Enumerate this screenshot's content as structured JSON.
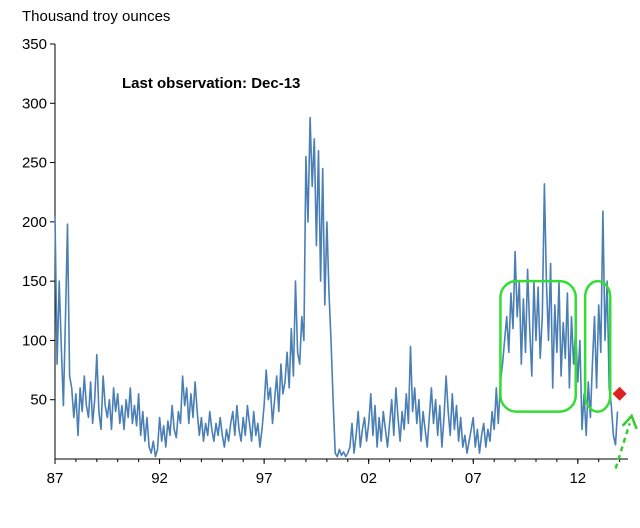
{
  "chart_data": {
    "type": "line",
    "title": "",
    "ylabel": "Thousand troy ounces",
    "xlabel": "",
    "annotation": "Last observation:  Dec-13",
    "ylim": [
      0,
      350
    ],
    "xlim": [
      1987,
      2014.4
    ],
    "yticks": [
      50,
      100,
      150,
      200,
      250,
      300,
      350
    ],
    "xtick_labels": [
      {
        "value": 1987,
        "label": "87"
      },
      {
        "value": 1992,
        "label": "92"
      },
      {
        "value": 1997,
        "label": "97"
      },
      {
        "value": 2002,
        "label": "02"
      },
      {
        "value": 2007,
        "label": "07"
      },
      {
        "value": 2012,
        "label": "12"
      }
    ],
    "grid": false,
    "colors": {
      "line": "#4a7fb5",
      "highlight": "#33dd33",
      "marker": "#dd2222",
      "arrow": "#33cc33"
    },
    "series": [
      {
        "name": "",
        "points": [
          [
            1987.0,
            205
          ],
          [
            1987.1,
            80
          ],
          [
            1987.2,
            150
          ],
          [
            1987.3,
            95
          ],
          [
            1987.4,
            45
          ],
          [
            1987.5,
            120
          ],
          [
            1987.6,
            198
          ],
          [
            1987.7,
            70
          ],
          [
            1987.8,
            60
          ],
          [
            1987.9,
            35
          ],
          [
            1988.0,
            55
          ],
          [
            1988.1,
            20
          ],
          [
            1988.2,
            60
          ],
          [
            1988.3,
            40
          ],
          [
            1988.4,
            70
          ],
          [
            1988.5,
            45
          ],
          [
            1988.6,
            35
          ],
          [
            1988.7,
            65
          ],
          [
            1988.8,
            30
          ],
          [
            1988.9,
            50
          ],
          [
            1989.0,
            88
          ],
          [
            1989.1,
            40
          ],
          [
            1989.2,
            25
          ],
          [
            1989.3,
            70
          ],
          [
            1989.4,
            45
          ],
          [
            1989.5,
            35
          ],
          [
            1989.6,
            50
          ],
          [
            1989.7,
            25
          ],
          [
            1989.8,
            60
          ],
          [
            1989.9,
            40
          ],
          [
            1990.0,
            55
          ],
          [
            1990.1,
            30
          ],
          [
            1990.2,
            45
          ],
          [
            1990.3,
            25
          ],
          [
            1990.4,
            50
          ],
          [
            1990.5,
            35
          ],
          [
            1990.6,
            60
          ],
          [
            1990.7,
            30
          ],
          [
            1990.8,
            45
          ],
          [
            1990.9,
            28
          ],
          [
            1991.0,
            55
          ],
          [
            1991.1,
            20
          ],
          [
            1991.2,
            40
          ],
          [
            1991.3,
            15
          ],
          [
            1991.4,
            35
          ],
          [
            1991.5,
            10
          ],
          [
            1991.6,
            5
          ],
          [
            1991.7,
            15
          ],
          [
            1991.8,
            2
          ],
          [
            1991.9,
            8
          ],
          [
            1992.0,
            35
          ],
          [
            1992.1,
            15
          ],
          [
            1992.2,
            28
          ],
          [
            1992.3,
            10
          ],
          [
            1992.4,
            32
          ],
          [
            1992.5,
            20
          ],
          [
            1992.6,
            45
          ],
          [
            1992.7,
            25
          ],
          [
            1992.8,
            18
          ],
          [
            1992.9,
            40
          ],
          [
            1993.0,
            30
          ],
          [
            1993.1,
            70
          ],
          [
            1993.2,
            45
          ],
          [
            1993.3,
            60
          ],
          [
            1993.4,
            30
          ],
          [
            1993.5,
            55
          ],
          [
            1993.6,
            35
          ],
          [
            1993.7,
            65
          ],
          [
            1993.8,
            40
          ],
          [
            1993.9,
            20
          ],
          [
            1994.0,
            35
          ],
          [
            1994.1,
            15
          ],
          [
            1994.2,
            30
          ],
          [
            1994.3,
            20
          ],
          [
            1994.4,
            40
          ],
          [
            1994.5,
            25
          ],
          [
            1994.6,
            15
          ],
          [
            1994.7,
            30
          ],
          [
            1994.8,
            20
          ],
          [
            1994.9,
            35
          ],
          [
            1995.0,
            20
          ],
          [
            1995.1,
            10
          ],
          [
            1995.2,
            25
          ],
          [
            1995.3,
            15
          ],
          [
            1995.4,
            30
          ],
          [
            1995.5,
            40
          ],
          [
            1995.6,
            20
          ],
          [
            1995.7,
            45
          ],
          [
            1995.8,
            25
          ],
          [
            1995.9,
            15
          ],
          [
            1996.0,
            35
          ],
          [
            1996.1,
            20
          ],
          [
            1996.2,
            45
          ],
          [
            1996.3,
            30
          ],
          [
            1996.4,
            15
          ],
          [
            1996.5,
            40
          ],
          [
            1996.6,
            20
          ],
          [
            1996.7,
            30
          ],
          [
            1996.8,
            10
          ],
          [
            1996.9,
            25
          ],
          [
            1997.0,
            45
          ],
          [
            1997.1,
            75
          ],
          [
            1997.2,
            50
          ],
          [
            1997.3,
            60
          ],
          [
            1997.4,
            30
          ],
          [
            1997.5,
            50
          ],
          [
            1997.6,
            70
          ],
          [
            1997.7,
            40
          ],
          [
            1997.8,
            80
          ],
          [
            1997.9,
            55
          ],
          [
            1998.0,
            65
          ],
          [
            1998.1,
            90
          ],
          [
            1998.2,
            60
          ],
          [
            1998.3,
            110
          ],
          [
            1998.4,
            70
          ],
          [
            1998.5,
            150
          ],
          [
            1998.6,
            90
          ],
          [
            1998.7,
            80
          ],
          [
            1998.8,
            120
          ],
          [
            1998.9,
            100
          ],
          [
            1999.0,
            255
          ],
          [
            1999.1,
            200
          ],
          [
            1999.2,
            288
          ],
          [
            1999.3,
            230
          ],
          [
            1999.4,
            270
          ],
          [
            1999.5,
            180
          ],
          [
            1999.6,
            260
          ],
          [
            1999.7,
            150
          ],
          [
            1999.8,
            245
          ],
          [
            1999.9,
            130
          ],
          [
            2000.0,
            200
          ],
          [
            2000.1,
            140
          ],
          [
            2000.2,
            100
          ],
          [
            2000.3,
            50
          ],
          [
            2000.4,
            5
          ],
          [
            2000.5,
            2
          ],
          [
            2000.6,
            8
          ],
          [
            2000.7,
            3
          ],
          [
            2000.8,
            6
          ],
          [
            2000.9,
            2
          ],
          [
            2001.0,
            5
          ],
          [
            2001.1,
            10
          ],
          [
            2001.2,
            30
          ],
          [
            2001.3,
            5
          ],
          [
            2001.4,
            20
          ],
          [
            2001.5,
            40
          ],
          [
            2001.6,
            10
          ],
          [
            2001.7,
            25
          ],
          [
            2001.8,
            35
          ],
          [
            2001.9,
            15
          ],
          [
            2002.0,
            30
          ],
          [
            2002.1,
            55
          ],
          [
            2002.2,
            20
          ],
          [
            2002.3,
            45
          ],
          [
            2002.4,
            10
          ],
          [
            2002.5,
            35
          ],
          [
            2002.6,
            15
          ],
          [
            2002.7,
            40
          ],
          [
            2002.8,
            25
          ],
          [
            2002.9,
            10
          ],
          [
            2003.0,
            30
          ],
          [
            2003.1,
            50
          ],
          [
            2003.2,
            20
          ],
          [
            2003.3,
            60
          ],
          [
            2003.4,
            35
          ],
          [
            2003.5,
            15
          ],
          [
            2003.6,
            40
          ],
          [
            2003.7,
            25
          ],
          [
            2003.8,
            55
          ],
          [
            2003.9,
            30
          ],
          [
            2004.0,
            95
          ],
          [
            2004.1,
            40
          ],
          [
            2004.2,
            60
          ],
          [
            2004.3,
            30
          ],
          [
            2004.4,
            50
          ],
          [
            2004.5,
            15
          ],
          [
            2004.6,
            40
          ],
          [
            2004.7,
            25
          ],
          [
            2004.8,
            10
          ],
          [
            2004.9,
            35
          ],
          [
            2005.0,
            60
          ],
          [
            2005.1,
            30
          ],
          [
            2005.2,
            50
          ],
          [
            2005.3,
            20
          ],
          [
            2005.4,
            45
          ],
          [
            2005.5,
            10
          ],
          [
            2005.6,
            35
          ],
          [
            2005.7,
            70
          ],
          [
            2005.8,
            40
          ],
          [
            2005.9,
            20
          ],
          [
            2006.0,
            55
          ],
          [
            2006.1,
            25
          ],
          [
            2006.2,
            45
          ],
          [
            2006.3,
            15
          ],
          [
            2006.4,
            35
          ],
          [
            2006.5,
            10
          ],
          [
            2006.6,
            20
          ],
          [
            2006.7,
            5
          ],
          [
            2006.8,
            15
          ],
          [
            2006.9,
            25
          ],
          [
            2007.0,
            35
          ],
          [
            2007.1,
            10
          ],
          [
            2007.2,
            25
          ],
          [
            2007.3,
            5
          ],
          [
            2007.4,
            20
          ],
          [
            2007.5,
            30
          ],
          [
            2007.6,
            10
          ],
          [
            2007.7,
            25
          ],
          [
            2007.8,
            15
          ],
          [
            2007.9,
            40
          ],
          [
            2008.0,
            25
          ],
          [
            2008.1,
            60
          ],
          [
            2008.2,
            30
          ],
          [
            2008.3,
            65
          ],
          [
            2008.4,
            80
          ],
          [
            2008.5,
            100
          ],
          [
            2008.6,
            120
          ],
          [
            2008.7,
            90
          ],
          [
            2008.8,
            140
          ],
          [
            2008.9,
            110
          ],
          [
            2009.0,
            175
          ],
          [
            2009.1,
            120
          ],
          [
            2009.2,
            150
          ],
          [
            2009.3,
            80
          ],
          [
            2009.4,
            135
          ],
          [
            2009.5,
            90
          ],
          [
            2009.6,
            160
          ],
          [
            2009.7,
            110
          ],
          [
            2009.8,
            70
          ],
          [
            2009.9,
            150
          ],
          [
            2010.0,
            100
          ],
          [
            2010.1,
            145
          ],
          [
            2010.2,
            85
          ],
          [
            2010.3,
            120
          ],
          [
            2010.4,
            232
          ],
          [
            2010.5,
            150
          ],
          [
            2010.6,
            100
          ],
          [
            2010.7,
            165
          ],
          [
            2010.8,
            60
          ],
          [
            2010.9,
            130
          ],
          [
            2011.0,
            90
          ],
          [
            2011.1,
            150
          ],
          [
            2011.2,
            70
          ],
          [
            2011.3,
            115
          ],
          [
            2011.4,
            85
          ],
          [
            2011.5,
            140
          ],
          [
            2011.6,
            60
          ],
          [
            2011.7,
            120
          ],
          [
            2011.8,
            80
          ],
          [
            2011.9,
            110
          ],
          [
            2012.0,
            65
          ],
          [
            2012.1,
            100
          ],
          [
            2012.2,
            25
          ],
          [
            2012.3,
            55
          ],
          [
            2012.4,
            20
          ],
          [
            2012.5,
            65
          ],
          [
            2012.6,
            35
          ],
          [
            2012.7,
            80
          ],
          [
            2012.8,
            120
          ],
          [
            2012.9,
            60
          ],
          [
            2013.0,
            130
          ],
          [
            2013.1,
            90
          ],
          [
            2013.2,
            209
          ],
          [
            2013.3,
            100
          ],
          [
            2013.4,
            150
          ],
          [
            2013.5,
            60
          ],
          [
            2013.6,
            45
          ],
          [
            2013.7,
            20
          ],
          [
            2013.8,
            12
          ],
          [
            2013.9,
            40
          ]
        ]
      }
    ],
    "last_point": {
      "x": 2014.0,
      "y": 55
    },
    "highlights": [
      {
        "x0": 2008.3,
        "x1": 2011.9,
        "y0": 40,
        "y1": 150
      },
      {
        "x0": 2012.35,
        "x1": 2013.55,
        "y0": 40,
        "y1": 150
      }
    ]
  }
}
